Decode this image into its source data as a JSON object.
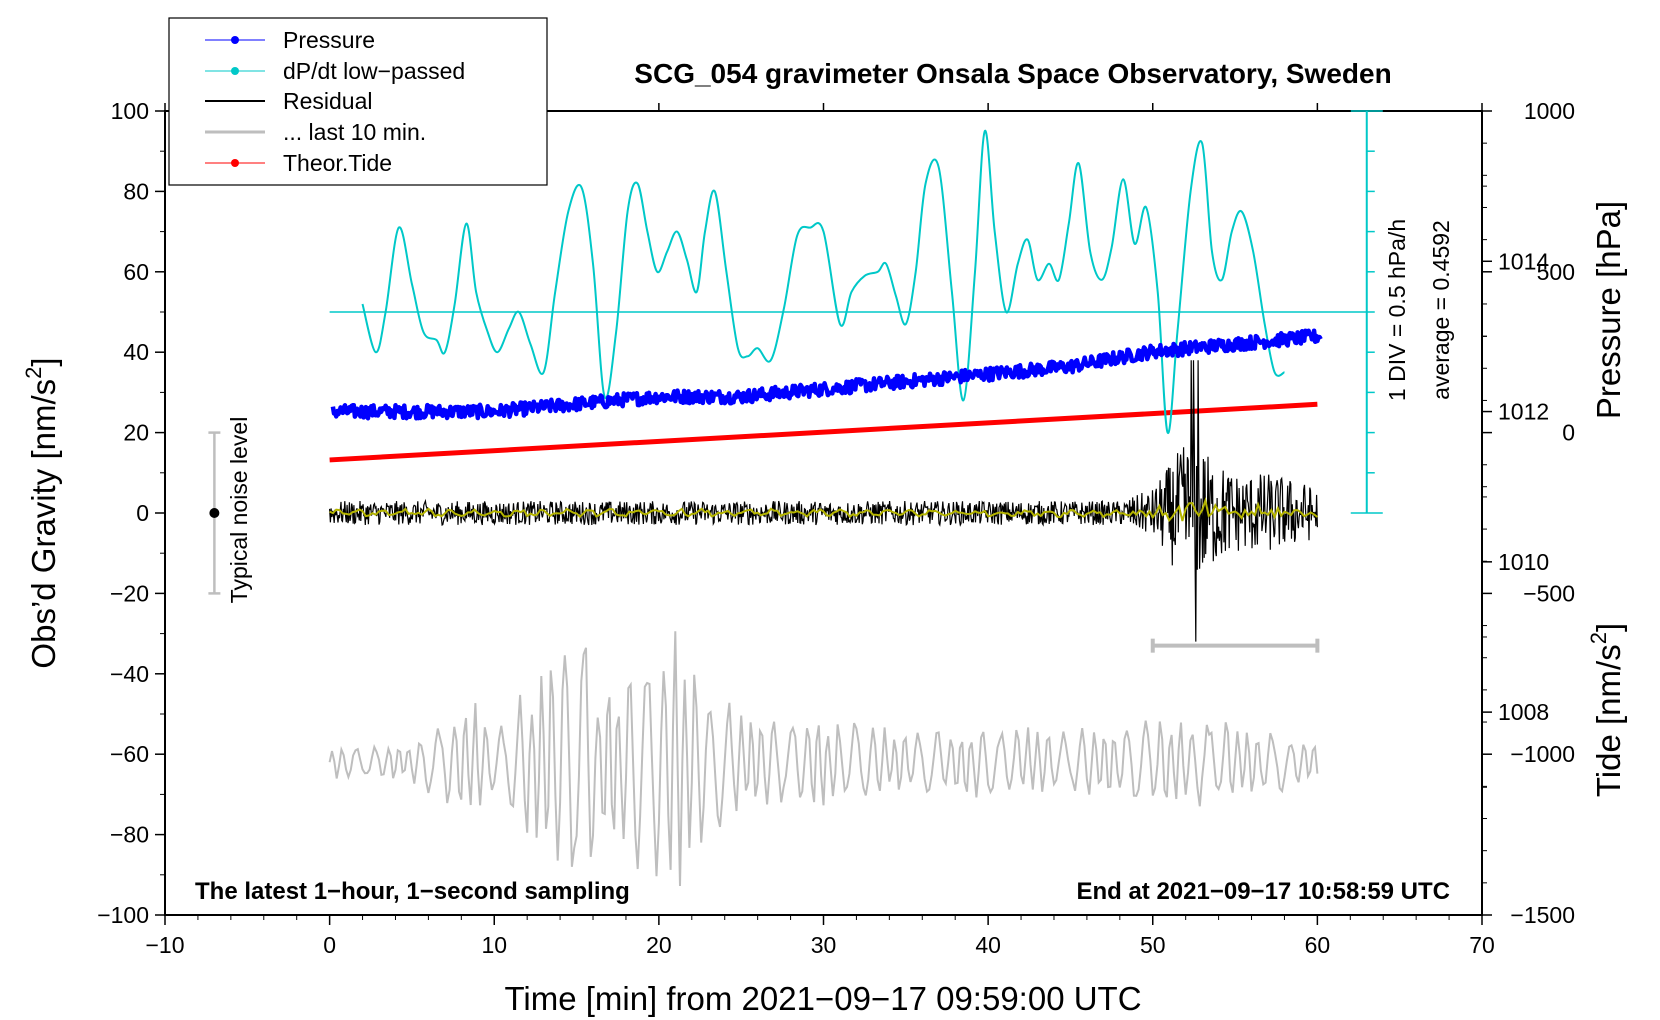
{
  "chart_data": {
    "type": "line",
    "title": "SCG_054 gravimeter Onsala Space Observatory, Sweden",
    "xlabel": "Time [min] from 2021−09−17 09:59:00 UTC",
    "ylabel_left": "Obs’d Gravity [nm/s²]",
    "ylabel_left_main": "Obs’d Gravity [nm/s",
    "ylabel_left_sup": "2",
    "ylabel_left_end": "]",
    "ylabel_right_pressure": "Pressure [hPa]",
    "ylabel_right_tide": "Tide [nm/s²]",
    "ylabel_right_tide_main": "Tide [nm/s",
    "ylabel_right_tide_sup": "2",
    "ylabel_right_tide_end": "]",
    "bottom_left_note": "The latest 1−hour, 1−second sampling",
    "bottom_right_note": "End at 2021−09−17 10:58:59 UTC",
    "xlim": [
      -10,
      70
    ],
    "ylim_left": [
      -100,
      100
    ],
    "ylim_pressure": [
      1005.3,
      1016
    ],
    "ylim_tide": [
      -1500,
      1000
    ],
    "x_ticks": [
      {
        "v": -10,
        "label": "−10"
      },
      {
        "v": 0,
        "label": "0"
      },
      {
        "v": 10,
        "label": "10"
      },
      {
        "v": 20,
        "label": "20"
      },
      {
        "v": 30,
        "label": "30"
      },
      {
        "v": 40,
        "label": "40"
      },
      {
        "v": 50,
        "label": "50"
      },
      {
        "v": 60,
        "label": "60"
      },
      {
        "v": 70,
        "label": "70"
      }
    ],
    "left_ticks": [
      {
        "v": 100,
        "label": "100"
      },
      {
        "v": 80,
        "label": "80"
      },
      {
        "v": 60,
        "label": "60"
      },
      {
        "v": 40,
        "label": "40"
      },
      {
        "v": 20,
        "label": "20"
      },
      {
        "v": 0,
        "label": "0"
      },
      {
        "v": -20,
        "label": "−20"
      },
      {
        "v": -40,
        "label": "−40"
      },
      {
        "v": -60,
        "label": "−60"
      },
      {
        "v": -80,
        "label": "−80"
      },
      {
        "v": -100,
        "label": "−100"
      }
    ],
    "pressure_ticks": [
      {
        "v": 1014,
        "label": "1014"
      },
      {
        "v": 1012,
        "label": "1012"
      },
      {
        "v": 1010,
        "label": "1010"
      },
      {
        "v": 1008,
        "label": "1008"
      }
    ],
    "tide_ticks": [
      {
        "v": 1000,
        "label": "1000"
      },
      {
        "v": 500,
        "label": "500"
      },
      {
        "v": 0,
        "label": "0"
      },
      {
        "v": -500,
        "label": "−500"
      },
      {
        "v": -1000,
        "label": "−1000"
      },
      {
        "v": -1500,
        "label": "−1500"
      }
    ],
    "legend": {
      "position": "top-left",
      "entries": [
        {
          "label": "Pressure",
          "color": "#0000ff",
          "marker": true
        },
        {
          "label": "dP/dt low−passed",
          "color": "#00c8c8",
          "marker": true
        },
        {
          "label": "Residual",
          "color": "#000000",
          "marker": false
        },
        {
          "label": "... last 10 min.",
          "color": "#bebebe",
          "marker": false
        },
        {
          "label": "Theor.Tide",
          "color": "#ff0000",
          "marker": true
        }
      ]
    },
    "noise_bar": {
      "x": -7,
      "center": 0,
      "low": -20,
      "high": 20,
      "label": "Typical noise level"
    },
    "dpdt_scale": {
      "div_label": "1 DIV = 0.5 hPa/h",
      "average_label": "average = 0.4592",
      "x": 63,
      "y_from": 0,
      "y_to": 100,
      "baseline": 50,
      "div_size": 10
    },
    "last10_bracket": {
      "x_from": 50,
      "x_to": 60,
      "y": -33
    },
    "series": [
      {
        "name": "Pressure",
        "axis": "pressure",
        "color": "#0000ff",
        "x": [
          0,
          5,
          10,
          15,
          20,
          25,
          30,
          35,
          40,
          45,
          50,
          55,
          60
        ],
        "values": [
          1012.0,
          1012.0,
          1012.0,
          1012.1,
          1012.2,
          1012.2,
          1012.3,
          1012.4,
          1012.5,
          1012.6,
          1012.8,
          1012.9,
          1013.0
        ]
      },
      {
        "name": "dP/dt low−passed",
        "axis": "left",
        "color": "#00c8c8",
        "x": [
          2,
          2.8,
          3.4,
          4.2,
          5,
          5.7,
          6.5,
          7,
          7.6,
          8.3,
          8.9,
          9.6,
          10.2,
          10.9,
          11.5,
          12.2,
          13,
          13.7,
          14.5,
          15.3,
          16,
          16.7,
          17.4,
          18.1,
          18.7,
          19.3,
          19.9,
          20.5,
          21.1,
          21.7,
          22.3,
          22.8,
          23.4,
          24.1,
          24.8,
          25.4,
          26,
          26.8,
          27.6,
          28.4,
          29.2,
          30,
          31,
          31.7,
          32.5,
          33.3,
          33.8,
          34.4,
          35,
          35.6,
          36.2,
          37,
          37.8,
          38.5,
          39.2,
          39.8,
          40.4,
          41.1,
          41.8,
          42.4,
          43,
          43.7,
          44.3,
          44.9,
          45.5,
          46.2,
          46.9,
          47.5,
          48.2,
          48.9,
          49.6,
          50.3,
          50.9,
          51.5,
          52.3,
          53,
          53.6,
          54.2,
          54.8,
          55.4,
          56.1,
          56.8,
          57.4,
          58
        ],
        "values": [
          52,
          40,
          50,
          71,
          57,
          45,
          43,
          40,
          52,
          72,
          55,
          45,
          40,
          46,
          50,
          42,
          35,
          55,
          75,
          81,
          62,
          29,
          45,
          75,
          82,
          70,
          60,
          65,
          70,
          63,
          55,
          70,
          80,
          60,
          41,
          39,
          41,
          38,
          51,
          69,
          71,
          70,
          47,
          55,
          59,
          60,
          62,
          54,
          47,
          60,
          82,
          86,
          55,
          28,
          60,
          95,
          70,
          50,
          62,
          68,
          58,
          62,
          58,
          72,
          87,
          65,
          58,
          66,
          83,
          67,
          76,
          55,
          20,
          45,
          80,
          92,
          65,
          58,
          70,
          75,
          65,
          47,
          35,
          35
        ]
      },
      {
        "name": "Residual",
        "axis": "left",
        "color": "#000000",
        "x": [
          0,
          10,
          20,
          30,
          40,
          48,
          50,
          51.5,
          52.5,
          53.5,
          55,
          57,
          59,
          60
        ],
        "values": [
          0,
          0,
          0,
          0,
          0,
          0,
          0,
          0,
          0,
          0,
          0,
          0,
          0,
          0
        ],
        "envelope_amplitude": [
          3,
          3,
          3,
          3,
          3,
          3,
          6,
          15,
          20,
          14,
          10,
          10,
          8,
          6
        ]
      },
      {
        "name": "... last 10 min.",
        "axis": "left",
        "color": "#bebebe",
        "x": [
          0,
          5,
          8.9,
          10,
          15.5,
          16.4,
          21,
          21.5,
          25,
          30,
          35,
          40,
          45,
          50,
          55,
          60
        ],
        "values": [
          -62,
          -62,
          -62,
          -62,
          -62,
          -62,
          -62,
          -62,
          -62,
          -62,
          -62,
          -62,
          -62,
          -62,
          -62,
          -62
        ],
        "envelope_amplitude": [
          4,
          5,
          18,
          8,
          40,
          18,
          38,
          30,
          12,
          12,
          8,
          10,
          8,
          12,
          12,
          5
        ]
      },
      {
        "name": "Theor.Tide",
        "axis": "tide",
        "color": "#ff0000",
        "x": [
          0,
          60
        ],
        "values": [
          -85,
          88
        ]
      }
    ]
  }
}
